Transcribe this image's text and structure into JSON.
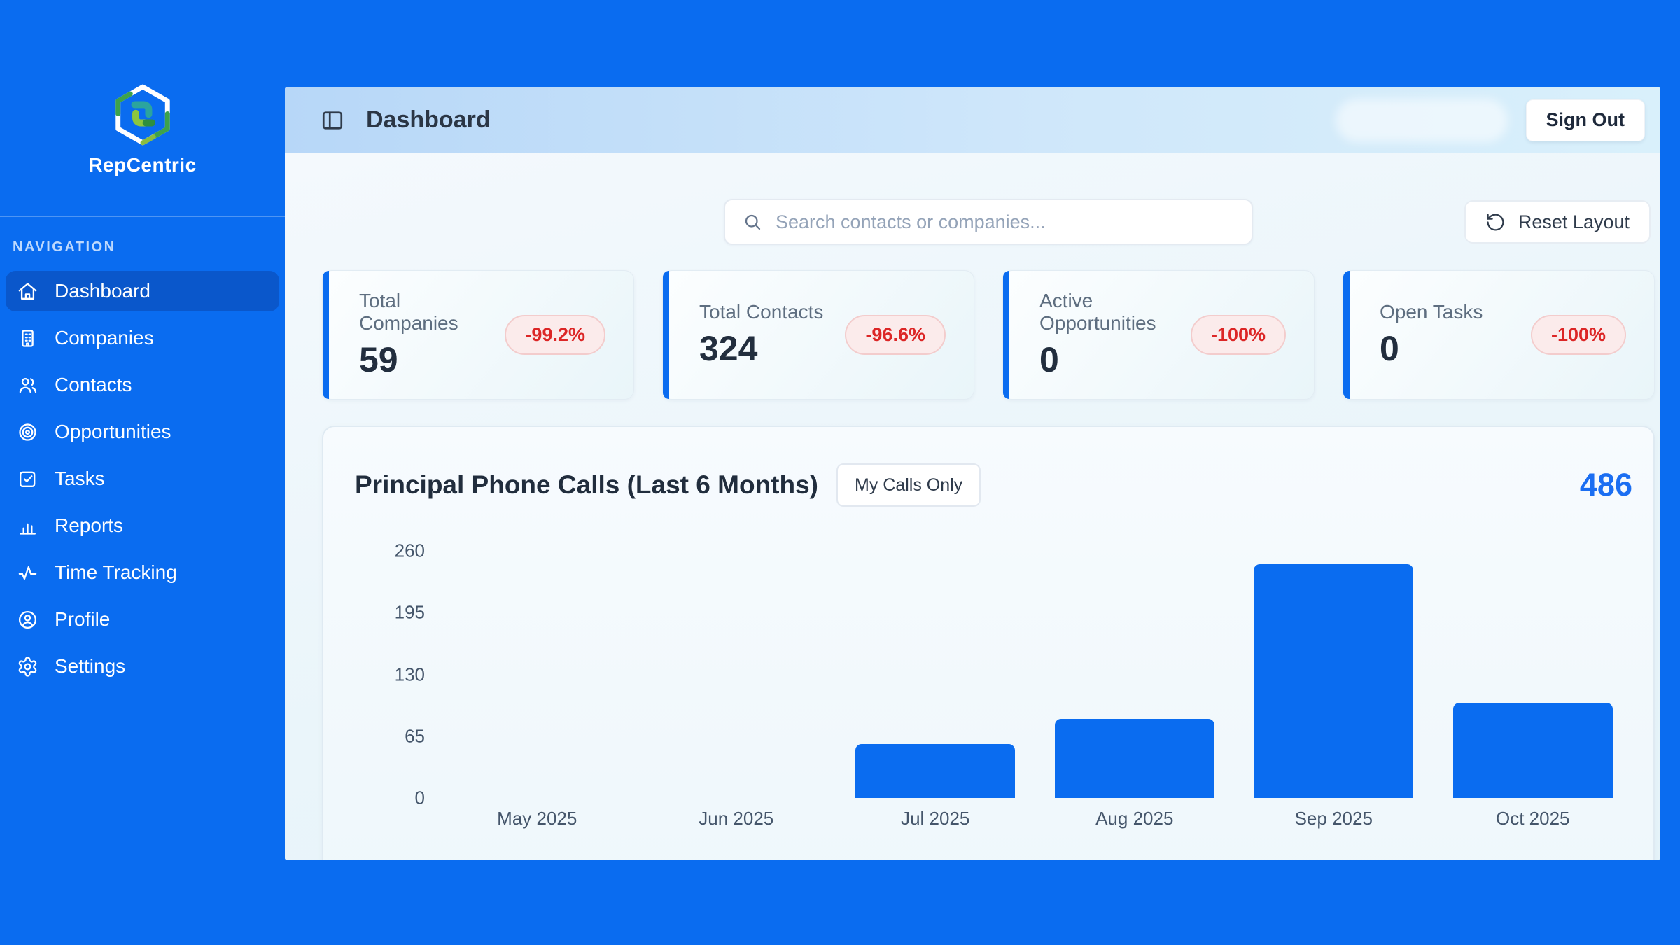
{
  "app": {
    "name": "RepCentric"
  },
  "sidebar": {
    "nav_label": "NAVIGATION",
    "items": [
      {
        "label": "Dashboard",
        "icon": "home-icon",
        "active": true
      },
      {
        "label": "Companies",
        "icon": "building-icon",
        "active": false
      },
      {
        "label": "Contacts",
        "icon": "users-icon",
        "active": false
      },
      {
        "label": "Opportunities",
        "icon": "target-icon",
        "active": false
      },
      {
        "label": "Tasks",
        "icon": "check-square-icon",
        "active": false
      },
      {
        "label": "Reports",
        "icon": "bar-chart-icon",
        "active": false
      },
      {
        "label": "Time Tracking",
        "icon": "activity-icon",
        "active": false
      },
      {
        "label": "Profile",
        "icon": "user-circle-icon",
        "active": false
      },
      {
        "label": "Settings",
        "icon": "gear-icon",
        "active": false
      }
    ]
  },
  "header": {
    "title": "Dashboard",
    "sign_out_label": "Sign Out"
  },
  "toolbar": {
    "search_placeholder": "Search contacts or companies...",
    "reset_label": "Reset Layout"
  },
  "stats": [
    {
      "label": "Total Companies",
      "value": "59",
      "change": "-99.2%"
    },
    {
      "label": "Total Contacts",
      "value": "324",
      "change": "-96.6%"
    },
    {
      "label": "Active Opportunities",
      "value": "0",
      "change": "-100%"
    },
    {
      "label": "Open Tasks",
      "value": "0",
      "change": "-100%"
    }
  ],
  "chart_card": {
    "title": "Principal Phone Calls (Last 6 Months)",
    "toggle_label": "My Calls Only",
    "total": "486"
  },
  "chart_data": {
    "type": "bar",
    "title": "Principal Phone Calls (Last 6 Months)",
    "categories": [
      "May 2025",
      "Jun 2025",
      "Jul 2025",
      "Aug 2025",
      "Sep 2025",
      "Oct 2025"
    ],
    "values": [
      0,
      0,
      57,
      83,
      246,
      100
    ],
    "total": 486,
    "xlabel": "",
    "ylabel": "",
    "ylim": [
      0,
      260
    ],
    "yticks": [
      0,
      65,
      130,
      195,
      260
    ],
    "grid": false,
    "legend": false,
    "bar_color": "#0a6cf0"
  },
  "colors": {
    "primary_blue": "#0a6cf0",
    "active_nav_blue": "#0a57cb",
    "negative_red": "#dc2626",
    "total_blue": "#1b6ef2"
  }
}
